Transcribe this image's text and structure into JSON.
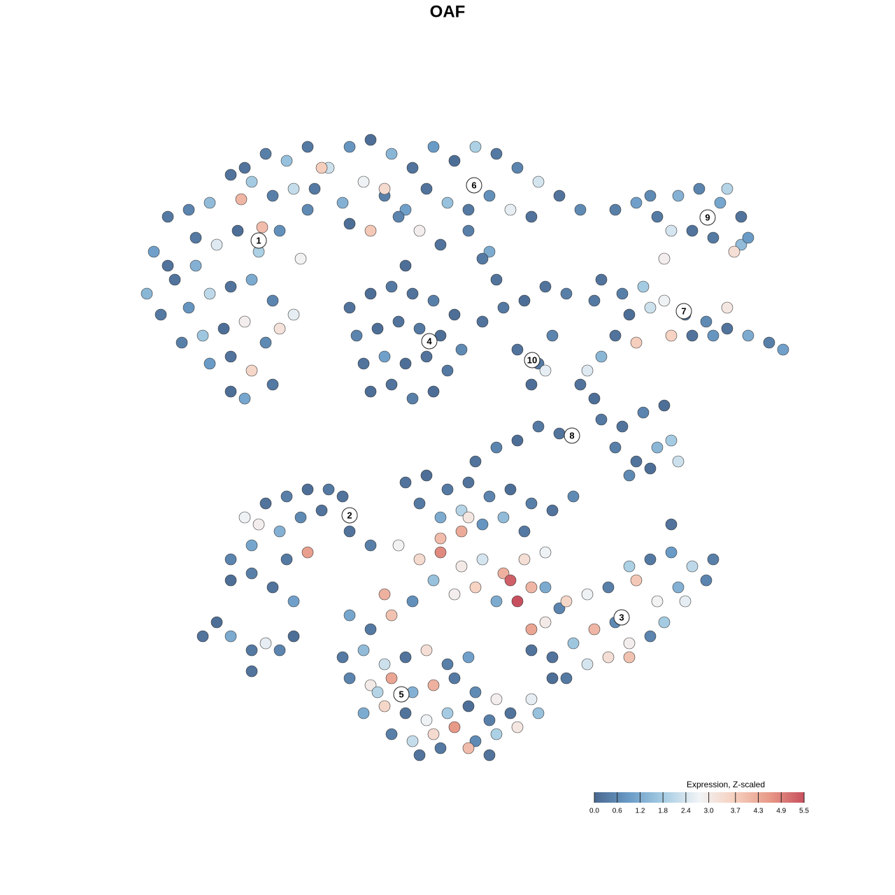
{
  "chart_data": {
    "type": "scatter",
    "title": "OAF",
    "xlim": [
      0,
      128
    ],
    "ylim": [
      128,
      0
    ],
    "colorbar_title": "Expression, Z-scaled",
    "clim": [
      0,
      5.5
    ],
    "colorbar_ticks": [
      {
        "value": 0,
        "label": "0.0"
      },
      0.6,
      1.2,
      1.8,
      2.4,
      {
        "value": 3,
        "label": "3.0"
      },
      3.7,
      4.3,
      4.9,
      5.5
    ],
    "colors": [
      "#4a6890",
      "#6a9cc7",
      "#a7cde3",
      "#f2f4f6",
      "#f6d0bf",
      "#e89a88",
      "#c8505e"
    ],
    "marker_edge": "#333333",
    "x": [
      22,
      24,
      27,
      30,
      33,
      36,
      39,
      42,
      44,
      25,
      28,
      31,
      34,
      37,
      40,
      43,
      21,
      23,
      27,
      30,
      33,
      36,
      39,
      42,
      26,
      29,
      32,
      35,
      38,
      40,
      30,
      33,
      36,
      39,
      33,
      35,
      37.5,
      34.5,
      24,
      28,
      35,
      38,
      41,
      44,
      47,
      50,
      53,
      56,
      59,
      62,
      65,
      68,
      71,
      74,
      77,
      80,
      83,
      45,
      49,
      52,
      55,
      58,
      61,
      64,
      67,
      70,
      73,
      76,
      50,
      53,
      57,
      60,
      63,
      67,
      70,
      46,
      55,
      69,
      71,
      58,
      50,
      53,
      56,
      59,
      62,
      65,
      51,
      54,
      57,
      60,
      63,
      66,
      52,
      55,
      58,
      61,
      64,
      53,
      56,
      59,
      62,
      69,
      72,
      75,
      78,
      81,
      74,
      77,
      76,
      79,
      78,
      88,
      91,
      94,
      97,
      100,
      103,
      106,
      104,
      96,
      99,
      93,
      102,
      106,
      105,
      107,
      95,
      86,
      89,
      92,
      95,
      98,
      101,
      104,
      107,
      110,
      112,
      90,
      93,
      99,
      102,
      96,
      104,
      85,
      88,
      91,
      86,
      83,
      85,
      84,
      86,
      89,
      92,
      95,
      88,
      91,
      94,
      97,
      90,
      93,
      96,
      80,
      77,
      74,
      71,
      68,
      33,
      36,
      35,
      38,
      41,
      44,
      47,
      49,
      40,
      43,
      46,
      33,
      36,
      39,
      42,
      41,
      44,
      50,
      53,
      37,
      29,
      31,
      33,
      36,
      38,
      40,
      42,
      36,
      58,
      61,
      64,
      67,
      70,
      73,
      76,
      79,
      82,
      60,
      63,
      66,
      69,
      72,
      75,
      57,
      60,
      63,
      66,
      69,
      72,
      75,
      78,
      62,
      65,
      68,
      71,
      73,
      74,
      76,
      59,
      55,
      56,
      53,
      50,
      80,
      63,
      66,
      67,
      78,
      81,
      84,
      87,
      90,
      93,
      96,
      99,
      102,
      97,
      94,
      91,
      88,
      85,
      82,
      79,
      81,
      84,
      87,
      90,
      93,
      95,
      98,
      101,
      76,
      78,
      76,
      79,
      90,
      96,
      49,
      52,
      55,
      58,
      61,
      64,
      67,
      50,
      53,
      56,
      59,
      62,
      65,
      68,
      71,
      52,
      55,
      58,
      61,
      64,
      67,
      70,
      73,
      56,
      59,
      62,
      65,
      68,
      71,
      74,
      60,
      63,
      67,
      70,
      54,
      76,
      77
    ],
    "y": [
      36,
      31,
      30,
      29,
      25,
      26,
      28,
      27,
      30,
      40,
      38,
      35,
      33,
      36,
      33,
      37,
      42,
      45,
      44,
      42,
      41,
      40,
      43,
      45,
      49,
      48,
      47,
      46,
      49,
      47,
      52,
      51,
      53,
      55,
      56,
      57,
      32.5,
      28.5,
      38,
      34,
      24,
      22,
      23,
      21,
      24,
      21,
      20,
      22,
      24,
      21,
      23,
      21,
      22,
      24,
      26,
      28,
      30,
      27,
      29,
      26,
      28,
      30,
      27,
      29,
      30,
      28,
      30,
      31,
      32,
      33,
      31,
      33,
      35,
      33,
      36,
      24,
      27,
      37,
      40,
      38,
      44,
      42,
      41,
      42,
      43,
      45,
      48,
      47,
      46,
      47,
      48,
      50,
      52,
      51,
      52,
      51,
      53,
      56,
      55,
      57,
      56,
      46,
      44,
      43,
      41,
      42,
      50,
      52,
      55,
      48,
      53,
      30,
      29,
      31,
      28,
      27,
      29,
      31,
      27,
      33,
      33,
      28,
      34,
      35,
      36,
      34,
      37,
      40,
      42,
      41,
      43,
      45,
      46,
      47,
      48,
      49,
      50,
      45,
      44,
      48,
      48,
      48,
      44,
      43,
      48,
      49,
      51,
      55,
      57,
      53,
      60,
      61,
      59,
      58,
      64,
      66,
      64,
      66,
      68,
      67,
      63,
      62,
      61,
      63,
      64,
      66,
      80,
      78,
      74,
      72,
      71,
      70,
      70,
      71,
      76,
      74,
      73,
      83,
      82,
      84,
      86,
      80,
      79,
      76,
      78,
      75,
      91,
      89,
      91,
      93,
      92,
      93,
      91,
      96,
      69,
      68,
      70,
      69,
      71,
      70,
      72,
      73,
      71,
      72,
      74,
      73,
      75,
      74,
      76,
      78,
      80,
      79,
      81,
      80,
      82,
      80,
      79,
      83,
      85,
      84,
      86,
      83,
      86,
      84,
      86,
      85,
      88,
      90,
      88,
      87,
      77,
      76,
      74,
      84,
      86,
      85,
      84,
      81,
      80,
      79,
      81,
      80,
      84,
      86,
      83,
      89,
      90,
      92,
      94,
      97,
      95,
      94,
      92,
      91,
      89,
      86,
      83,
      90,
      89,
      93,
      97,
      94,
      75,
      94,
      93,
      95,
      94,
      93,
      95,
      94,
      97,
      98,
      97,
      99,
      98,
      97,
      99,
      100,
      102,
      101,
      102,
      103,
      102,
      101,
      103,
      102,
      105,
      106,
      105,
      104,
      106,
      105,
      104,
      108,
      107,
      107,
      108,
      99,
      100,
      102
    ],
    "values": [
      1.0,
      0.3,
      0.5,
      1.5,
      0.2,
      1.8,
      0.4,
      2.2,
      0.6,
      0.2,
      1.3,
      2.5,
      0.1,
      1.9,
      0.7,
      2.8,
      1.4,
      0.3,
      0.8,
      2.1,
      0.2,
      1.2,
      0.5,
      2.6,
      0.4,
      1.7,
      0.1,
      2.9,
      0.6,
      3.2,
      0.9,
      0.2,
      3.5,
      0.3,
      0.1,
      1.1,
      4.0,
      4.1,
      0.2,
      0.3,
      0.2,
      0.4,
      1.6,
      0.3,
      2.3,
      0.8,
      0.1,
      1.4,
      0.2,
      0.9,
      0.1,
      1.9,
      0.3,
      0.5,
      2.4,
      0.2,
      0.6,
      0.3,
      1.3,
      2.7,
      0.4,
      1.0,
      0.2,
      1.6,
      0.3,
      0.7,
      2.6,
      0.2,
      0.1,
      3.8,
      0.5,
      2.9,
      0.2,
      0.4,
      1.2,
      3.7,
      3.4,
      0.3,
      0.2,
      0.1,
      0.2,
      0.1,
      0.3,
      0.2,
      0.4,
      0.1,
      0.5,
      0.1,
      0.2,
      0.3,
      0.1,
      0.6,
      0.2,
      1.0,
      0.1,
      0.2,
      0.3,
      0.1,
      0.2,
      0.4,
      0.1,
      0.2,
      0.3,
      0.1,
      0.2,
      0.4,
      0.2,
      0.3,
      0.1,
      0.5,
      2.6,
      0.4,
      1.0,
      0.3,
      1.3,
      0.5,
      1.1,
      0.2,
      2.0,
      2.4,
      0.2,
      0.6,
      0.3,
      1.5,
      3.3,
      0.9,
      2.9,
      0.2,
      0.4,
      1.8,
      2.7,
      0.3,
      0.6,
      0.2,
      1.2,
      0.4,
      1.0,
      0.1,
      2.3,
      0.2,
      0.8,
      3.6,
      3.1,
      0.3,
      0.2,
      3.7,
      1.4,
      0.2,
      0.1,
      2.5,
      0.3,
      0.2,
      0.5,
      0.1,
      0.4,
      0.2,
      1.4,
      2.3,
      0.6,
      0.1,
      1.8,
      0.2,
      0.3,
      0.1,
      0.5,
      0.2,
      0.5,
      1.1,
      2.7,
      0.2,
      0.4,
      0.1,
      0.3,
      0.2,
      1.3,
      0.6,
      0.2,
      0.1,
      0.4,
      0.2,
      1.0,
      0.3,
      4.5,
      0.2,
      0.4,
      2.9,
      0.2,
      0.1,
      1.2,
      0.3,
      2.6,
      0.5,
      0.1,
      0.2,
      0.2,
      0.1,
      0.3,
      0.2,
      0.5,
      0.1,
      0.4,
      0.2,
      0.6,
      0.3,
      1.2,
      2.0,
      0.8,
      1.5,
      0.3,
      2.8,
      3.4,
      4.8,
      3.0,
      2.4,
      4.2,
      3.3,
      2.7,
      1.6,
      2.9,
      3.6,
      1.2,
      5.3,
      5.5,
      4.1,
      0.7,
      4.2,
      3.9,
      0.3,
      1.1,
      0.5,
      4.0,
      4.3,
      3.1,
      1.2,
      3.5,
      2.7,
      0.4,
      1.9,
      0.3,
      0.9,
      2.1,
      0.4,
      1.3,
      2.8,
      3.8,
      0.6,
      4.1,
      1.7,
      0.2,
      0.3,
      2.4,
      3.3,
      2.9,
      0.5,
      1.8,
      2.6,
      0.5,
      4.4,
      3.0,
      0.2,
      0.1,
      3.9,
      0.2,
      0.3,
      1.5,
      2.3,
      0.2,
      3.3,
      0.4,
      1.0,
      0.5,
      3.0,
      4.4,
      1.3,
      4.2,
      0.3,
      0.6,
      2.9,
      1.2,
      3.5,
      0.2,
      2.7,
      1.8,
      0.1,
      0.4,
      0.2,
      0.4,
      2.2,
      3.4,
      4.6,
      0.6,
      1.9,
      3.1,
      0.2,
      0.3,
      4.0,
      0.2,
      2.0,
      2.6,
      1.6
    ],
    "annotations": [
      {
        "text": "1",
        "x": 37,
        "y": 34.4
      },
      {
        "text": "6",
        "x": 67.8,
        "y": 26.5
      },
      {
        "text": "4",
        "x": 61.4,
        "y": 48.8
      },
      {
        "text": "10",
        "x": 76.1,
        "y": 51.5
      },
      {
        "text": "9",
        "x": 101.2,
        "y": 31.1
      },
      {
        "text": "7",
        "x": 97.8,
        "y": 44.5
      },
      {
        "text": "8",
        "x": 81.8,
        "y": 62.3
      },
      {
        "text": "2",
        "x": 50,
        "y": 73.7
      },
      {
        "text": "3",
        "x": 88.9,
        "y": 88.3
      },
      {
        "text": "5",
        "x": 57.4,
        "y": 99.3
      }
    ]
  }
}
